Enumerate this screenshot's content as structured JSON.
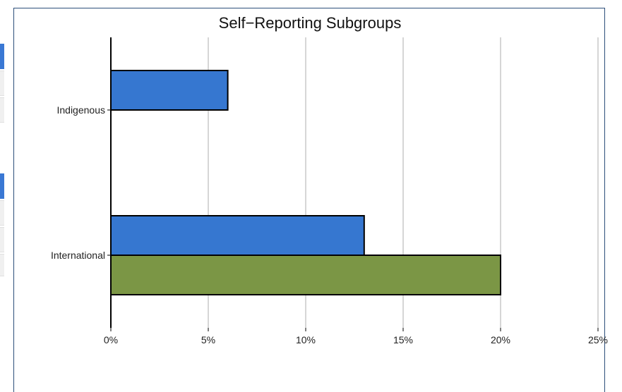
{
  "chart_data": {
    "type": "bar",
    "orientation": "horizontal",
    "title": "Self−Reporting Subgroups",
    "categories": [
      "Indigenous",
      "International"
    ],
    "series": [
      {
        "values": [
          6,
          13
        ],
        "color": "#3677d0"
      },
      {
        "values": [
          null,
          20
        ],
        "color": "#7b9645"
      }
    ],
    "xlim": [
      0,
      25
    ],
    "xticks": [
      "0%",
      "5%",
      "10%",
      "15%",
      "20%",
      "25%"
    ],
    "grid": true,
    "legend": "none"
  }
}
